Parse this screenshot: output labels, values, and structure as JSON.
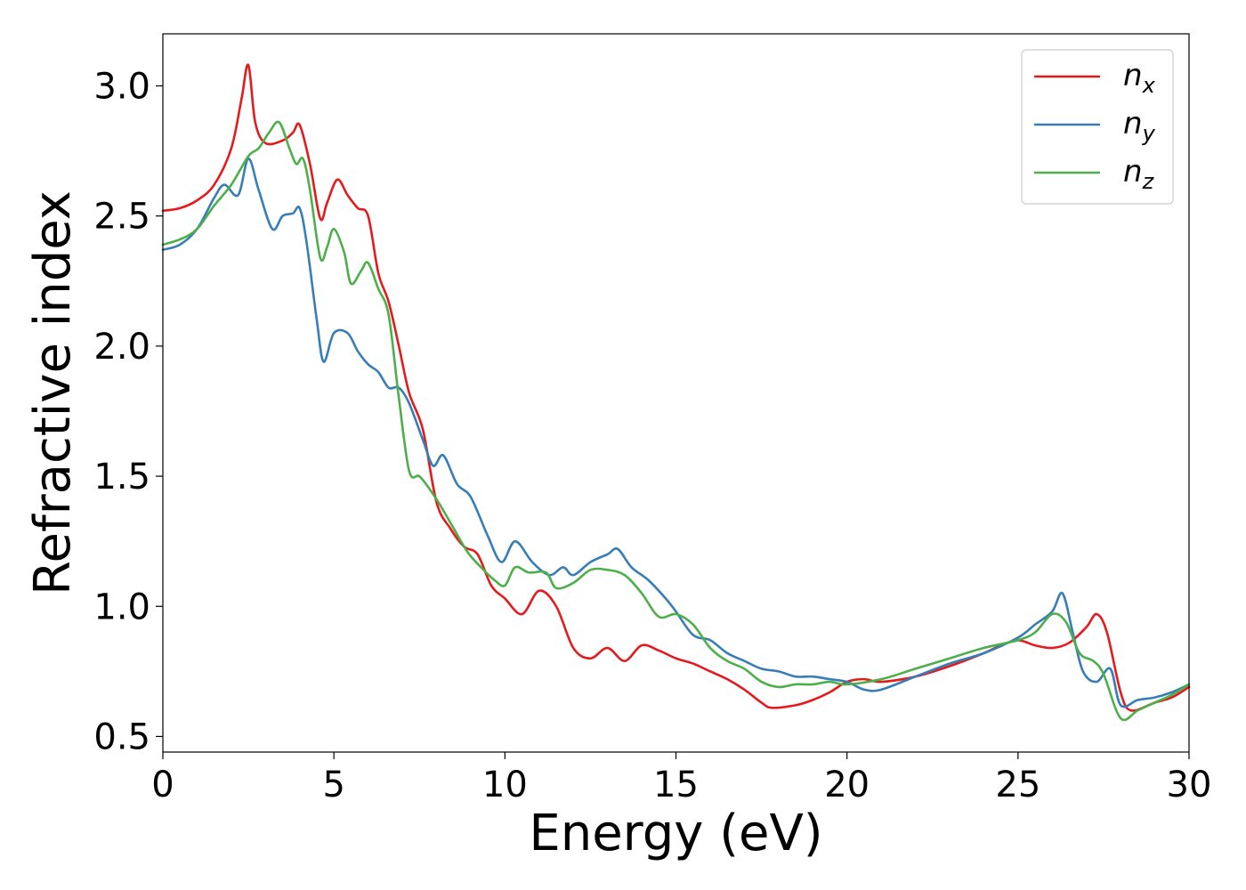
{
  "chart_data": {
    "type": "line",
    "xlabel": "Energy (eV)",
    "ylabel": "Refractive index",
    "xlim": [
      0,
      30
    ],
    "ylim": [
      0.44,
      3.2
    ],
    "xticks": [
      0,
      5,
      10,
      15,
      20,
      25,
      30
    ],
    "xtick_labels": [
      "0",
      "5",
      "10",
      "15",
      "20",
      "25",
      "30"
    ],
    "yticks": [
      0.5,
      1.0,
      1.5,
      2.0,
      2.5,
      3.0
    ],
    "ytick_labels": [
      "0.5",
      "1.0",
      "1.5",
      "2.0",
      "2.5",
      "3.0"
    ],
    "grid": false,
    "legend_position": "top-right",
    "series": [
      {
        "name": "n_x",
        "legend_base": "n",
        "legend_sub": "x",
        "color": "#e41a1c",
        "x": [
          0,
          0.5,
          1.0,
          1.5,
          2.0,
          2.3,
          2.5,
          2.7,
          3.0,
          3.5,
          3.8,
          4.0,
          4.3,
          4.6,
          4.8,
          5.1,
          5.4,
          5.7,
          6.0,
          6.3,
          6.6,
          6.9,
          7.2,
          7.6,
          8.0,
          8.4,
          8.8,
          9.2,
          9.6,
          10.0,
          10.5,
          11.0,
          11.5,
          12.0,
          12.5,
          13.0,
          13.5,
          14.0,
          14.5,
          15.0,
          15.5,
          16.0,
          16.5,
          17.0,
          17.5,
          17.8,
          18.5,
          19.0,
          19.5,
          20.0,
          20.5,
          21.0,
          22.0,
          23.0,
          24.0,
          24.5,
          25.0,
          25.5,
          26.0,
          26.5,
          27.0,
          27.3,
          27.6,
          28.0,
          28.3,
          29.0,
          29.5,
          30.0
        ],
        "values": [
          2.52,
          2.53,
          2.56,
          2.62,
          2.76,
          2.95,
          3.08,
          2.86,
          2.78,
          2.79,
          2.82,
          2.85,
          2.7,
          2.49,
          2.55,
          2.64,
          2.58,
          2.53,
          2.5,
          2.28,
          2.17,
          2.0,
          1.82,
          1.68,
          1.4,
          1.3,
          1.23,
          1.2,
          1.08,
          1.03,
          0.97,
          1.06,
          1.0,
          0.84,
          0.8,
          0.84,
          0.79,
          0.85,
          0.83,
          0.8,
          0.78,
          0.75,
          0.72,
          0.68,
          0.63,
          0.61,
          0.62,
          0.64,
          0.67,
          0.71,
          0.72,
          0.71,
          0.73,
          0.77,
          0.82,
          0.85,
          0.87,
          0.85,
          0.84,
          0.86,
          0.92,
          0.97,
          0.9,
          0.67,
          0.6,
          0.63,
          0.65,
          0.69
        ]
      },
      {
        "name": "n_y",
        "legend_base": "n",
        "legend_sub": "y",
        "color": "#377eb8",
        "x": [
          0,
          0.5,
          1.0,
          1.5,
          1.8,
          2.2,
          2.5,
          2.8,
          3.2,
          3.5,
          3.8,
          4.0,
          4.2,
          4.5,
          4.7,
          5.0,
          5.4,
          5.7,
          6.0,
          6.3,
          6.6,
          6.9,
          7.2,
          7.6,
          7.9,
          8.2,
          8.6,
          9.0,
          9.5,
          9.9,
          10.3,
          10.8,
          11.3,
          11.7,
          12.0,
          12.5,
          13.0,
          13.3,
          13.7,
          14.2,
          14.7,
          15.0,
          15.5,
          16.0,
          16.5,
          17.0,
          17.5,
          18.0,
          18.5,
          19.0,
          19.5,
          20.0,
          20.5,
          21.0,
          22.0,
          23.0,
          24.0,
          25.0,
          25.5,
          26.0,
          26.3,
          26.6,
          26.9,
          27.3,
          27.7,
          28.0,
          28.5,
          29.0,
          29.5,
          30.0
        ],
        "values": [
          2.37,
          2.39,
          2.45,
          2.57,
          2.62,
          2.58,
          2.72,
          2.6,
          2.45,
          2.5,
          2.51,
          2.53,
          2.4,
          2.1,
          1.94,
          2.05,
          2.05,
          1.98,
          1.93,
          1.9,
          1.84,
          1.84,
          1.78,
          1.64,
          1.54,
          1.58,
          1.47,
          1.42,
          1.27,
          1.17,
          1.25,
          1.17,
          1.12,
          1.15,
          1.12,
          1.17,
          1.2,
          1.22,
          1.15,
          1.1,
          1.03,
          0.98,
          0.89,
          0.87,
          0.82,
          0.79,
          0.76,
          0.75,
          0.73,
          0.73,
          0.72,
          0.71,
          0.68,
          0.68,
          0.73,
          0.78,
          0.82,
          0.88,
          0.93,
          0.98,
          1.05,
          0.9,
          0.75,
          0.71,
          0.76,
          0.62,
          0.64,
          0.65,
          0.67,
          0.7
        ]
      },
      {
        "name": "n_z",
        "legend_base": "n",
        "legend_sub": "z",
        "color": "#4daf4a",
        "x": [
          0,
          0.5,
          1.0,
          1.5,
          2.0,
          2.5,
          2.8,
          3.1,
          3.4,
          3.7,
          3.9,
          4.1,
          4.3,
          4.6,
          4.8,
          5.0,
          5.3,
          5.5,
          5.8,
          6.0,
          6.3,
          6.6,
          6.9,
          7.2,
          7.5,
          7.8,
          8.1,
          8.5,
          8.9,
          9.3,
          9.7,
          10.0,
          10.3,
          10.7,
          11.2,
          11.5,
          12.0,
          12.5,
          13.0,
          13.5,
          14.0,
          14.5,
          15.0,
          15.5,
          16.0,
          16.5,
          17.0,
          17.5,
          18.0,
          18.5,
          19.0,
          19.5,
          20.0,
          21.0,
          22.0,
          23.0,
          24.0,
          25.0,
          25.5,
          26.0,
          26.4,
          26.8,
          27.2,
          27.5,
          28.0,
          28.5,
          29.0,
          29.5,
          30.0
        ],
        "values": [
          2.39,
          2.41,
          2.45,
          2.54,
          2.62,
          2.73,
          2.76,
          2.82,
          2.86,
          2.76,
          2.7,
          2.72,
          2.6,
          2.34,
          2.38,
          2.45,
          2.36,
          2.24,
          2.29,
          2.32,
          2.22,
          2.12,
          1.8,
          1.52,
          1.5,
          1.45,
          1.39,
          1.3,
          1.21,
          1.15,
          1.1,
          1.08,
          1.15,
          1.13,
          1.13,
          1.07,
          1.09,
          1.14,
          1.14,
          1.12,
          1.05,
          0.96,
          0.97,
          0.93,
          0.84,
          0.79,
          0.76,
          0.71,
          0.69,
          0.7,
          0.7,
          0.71,
          0.7,
          0.72,
          0.76,
          0.8,
          0.84,
          0.87,
          0.9,
          0.97,
          0.94,
          0.82,
          0.79,
          0.74,
          0.57,
          0.6,
          0.63,
          0.66,
          0.7
        ]
      }
    ]
  }
}
